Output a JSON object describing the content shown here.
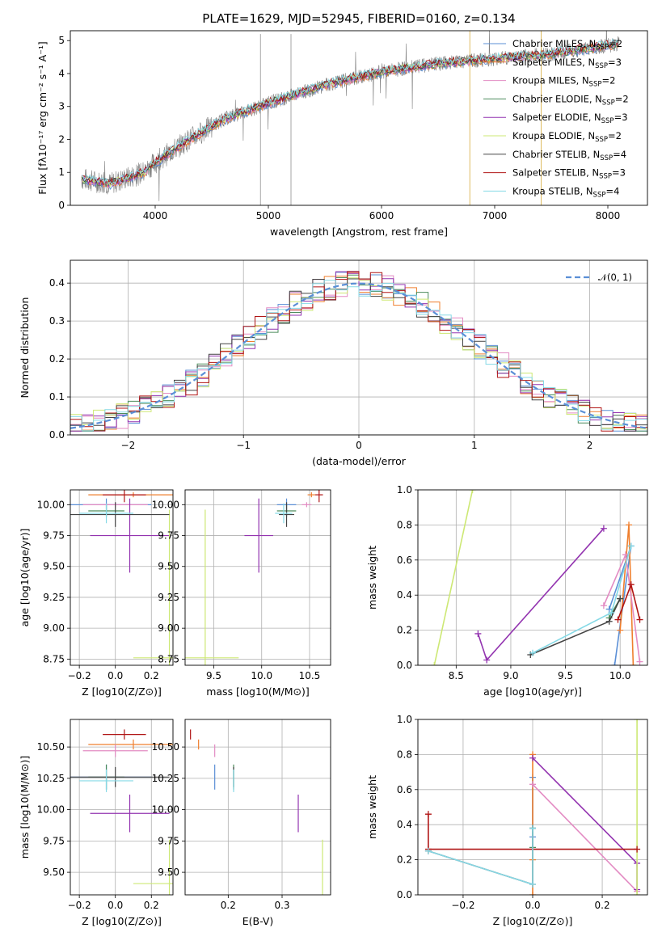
{
  "figure": {
    "title": "PLATE=1629, MJD=52945, FIBERID=0160, z=0.134"
  },
  "colors": {
    "Chabrier MILES": "#5b8fd6",
    "Salpeter MILES": "#ef7f2e",
    "Kroupa MILES": "#e38bc3",
    "Chabrier ELODIE": "#4c8c5c",
    "Salpeter ELODIE": "#9334b0",
    "Kroupa ELODIE": "#cde874",
    "Chabrier STELIB": "#444444",
    "Salpeter STELIB": "#b01515",
    "Kroupa STELIB": "#86d9e6",
    "data": "#808080",
    "normal": "#5b8fd6"
  },
  "chart_data": [
    {
      "id": "spectrum",
      "type": "line",
      "title": "PLATE=1629, MJD=52945, FIBERID=0160, z=0.134",
      "xlabel": "wavelength [Angstrom, rest frame]",
      "ylabel": "Flux [fλ10⁻¹⁷ erg cm⁻² s⁻¹ A⁻¹]",
      "xlim": [
        3250,
        8350
      ],
      "ylim": [
        0,
        5.3
      ],
      "xticks": [
        "4000",
        "5000",
        "6000",
        "7000",
        "8000"
      ],
      "yticks": [
        "0",
        "1",
        "2",
        "3",
        "4",
        "5"
      ],
      "legend_position": "right",
      "series": [
        {
          "name": "Chabrier MILES, N_SSP=2"
        },
        {
          "name": "Salpeter MILES, N_SSP=3"
        },
        {
          "name": "Kroupa MILES, N_SSP=2"
        },
        {
          "name": "Chabrier ELODIE, N_SSP=2"
        },
        {
          "name": "Salpeter ELODIE, N_SSP=3"
        },
        {
          "name": "Kroupa ELODIE, N_SSP=2"
        },
        {
          "name": "Chabrier STELIB, N_SSP=4"
        },
        {
          "name": "Salpeter STELIB, N_SSP=3"
        },
        {
          "name": "Kroupa STELIB, N_SSP=4"
        }
      ],
      "continuum": {
        "x": [
          3350,
          3600,
          3900,
          4000,
          4300,
          4600,
          5000,
          5500,
          6000,
          6500,
          7000,
          7500,
          8000,
          8100
        ],
        "y": [
          0.8,
          0.65,
          1.0,
          1.3,
          2.0,
          2.6,
          3.1,
          3.65,
          4.05,
          4.3,
          4.45,
          4.6,
          4.85,
          4.9
        ]
      }
    },
    {
      "id": "residuals",
      "type": "line",
      "xlabel": "(data-model)/error",
      "ylabel": "Normed distribution",
      "xlim": [
        -2.5,
        2.5
      ],
      "ylim": [
        0,
        0.46
      ],
      "xticks": [
        "−2",
        "−1",
        "0",
        "1",
        "2"
      ],
      "yticks": [
        "0.0",
        "0.1",
        "0.2",
        "0.3",
        "0.4"
      ],
      "grid": true,
      "legend_position": "top-right",
      "legend": "𝒩(0, 1)",
      "series_name": "𝒩(0, 1)"
    },
    {
      "id": "age-vs-Z",
      "type": "scatter",
      "xlabel": "Z [log10(Z/Z⊙)]",
      "ylabel": "age  [log10(age/yr)]",
      "xlim": [
        -0.25,
        0.32
      ],
      "ylim": [
        8.7,
        10.12
      ],
      "xticks": [
        "−0.2",
        "0.0",
        "0.2"
      ],
      "yticks": [
        "8.75",
        "9.00",
        "9.25",
        "9.50",
        "9.75",
        "10.00"
      ],
      "grid": true
    },
    {
      "id": "age-vs-mass",
      "type": "scatter",
      "xlabel": "mass [log10(M/M⊙)]",
      "xlim": [
        9.2,
        10.72
      ],
      "ylim": [
        8.7,
        10.12
      ],
      "xticks": [
        "9.5",
        "10.0",
        "10.5"
      ],
      "yticks": [
        "8.75",
        "9.00",
        "9.25",
        "9.50",
        "9.75",
        "10.00"
      ],
      "grid": true
    },
    {
      "id": "weight-vs-age",
      "type": "line",
      "xlabel": "age  [log10(age/yr)]",
      "ylabel": "mass weight",
      "xlim": [
        8.15,
        10.25
      ],
      "ylim": [
        0,
        1.0
      ],
      "xticks": [
        "8.5",
        "9.0",
        "9.5",
        "10.0"
      ],
      "yticks": [
        "0.0",
        "0.2",
        "0.4",
        "0.6",
        "0.8",
        "1.0"
      ],
      "grid": true
    },
    {
      "id": "mass-vs-Z",
      "type": "scatter",
      "xlabel": "Z [log10(Z/Z⊙)]",
      "ylabel": "mass [log10(M/M⊙)]",
      "xlim": [
        -0.25,
        0.32
      ],
      "ylim": [
        9.32,
        10.72
      ],
      "xticks": [
        "−0.2",
        "0.0",
        "0.2"
      ],
      "yticks": [
        "9.50",
        "9.75",
        "10.00",
        "10.25",
        "10.50"
      ],
      "grid": true
    },
    {
      "id": "mass-vs-ebv",
      "type": "scatter",
      "xlabel": "E(B-V)",
      "xlim": [
        0.12,
        0.39
      ],
      "ylim": [
        9.32,
        10.72
      ],
      "xticks": [
        "0.2",
        "0.3"
      ],
      "yticks": [
        "9.50",
        "9.75",
        "10.00",
        "10.25",
        "10.50"
      ],
      "grid": true
    },
    {
      "id": "weight-vs-Z",
      "type": "line",
      "xlabel": "Z [log10(Z/Z⊙)]",
      "ylabel": "mass weight",
      "xlim": [
        -0.33,
        0.33
      ],
      "ylim": [
        0,
        1.0
      ],
      "xticks": [
        "−0.2",
        "0.0",
        "0.2"
      ],
      "yticks": [
        "0.0",
        "0.2",
        "0.4",
        "0.6",
        "0.8",
        "1.0"
      ],
      "grid": true
    }
  ],
  "models": [
    {
      "name": "Chabrier MILES",
      "age": [
        10.0,
        0.05
      ],
      "Z": [
        -0.05,
        0.25
      ],
      "mass": [
        10.26,
        0.1
      ],
      "ebv": 0.175,
      "w_age": [
        9.9,
        10.1,
        9.95
      ],
      "w_w": [
        0.32,
        0.68,
        0.0
      ],
      "w_Z": [
        0.0,
        0.0
      ],
      "w_wz": [
        0.33,
        0.67
      ]
    },
    {
      "name": "Salpeter MILES",
      "age": [
        10.08,
        0.02
      ],
      "Z": [
        0.1,
        0.25
      ],
      "mass": [
        10.52,
        0.04
      ],
      "ebv": 0.145,
      "w_age": [
        10.0,
        10.08,
        10.12
      ],
      "w_w": [
        0.2,
        0.8,
        0.0
      ],
      "w_Z": [
        0.0,
        0.0,
        0.0
      ],
      "w_wz": [
        0.2,
        0.8,
        0.0
      ]
    },
    {
      "name": "Kroupa MILES",
      "age": [
        10.0,
        0.02
      ],
      "Z": [
        0.0,
        0.18
      ],
      "mass": [
        10.47,
        0.05
      ],
      "ebv": 0.175,
      "w_age": [
        9.85,
        10.05,
        10.18
      ],
      "w_w": [
        0.34,
        0.63,
        0.02
      ],
      "w_Z": [
        0.0,
        0.3
      ],
      "w_wz": [
        0.63,
        0.02
      ]
    },
    {
      "name": "Chabrier ELODIE",
      "age": [
        9.95,
        0.05
      ],
      "Z": [
        -0.05,
        0.1
      ],
      "mass": [
        10.26,
        0.1
      ],
      "ebv": 0.21,
      "w_age": [
        9.9,
        10.0
      ],
      "w_w": [
        0.27,
        0.38
      ],
      "w_Z": [
        0.0,
        0.0
      ],
      "w_wz": [
        0.27,
        0.38
      ]
    },
    {
      "name": "Salpeter ELODIE",
      "age": [
        9.75,
        0.3
      ],
      "Z": [
        0.08,
        0.22
      ],
      "mass": [
        9.97,
        0.15
      ],
      "ebv": 0.33,
      "w_age": [
        8.7,
        8.78,
        9.85
      ],
      "w_w": [
        0.18,
        0.03,
        0.78
      ],
      "w_Z": [
        0.0,
        0.3,
        0.3
      ],
      "w_wz": [
        0.78,
        0.18,
        0.03
      ]
    },
    {
      "name": "Kroupa ELODIE",
      "age": [
        8.76,
        1.2
      ],
      "Z": [
        0.3,
        0.2
      ],
      "mass": [
        9.41,
        0.35
      ],
      "ebv": 0.375,
      "w_age": [
        8.3,
        8.65
      ],
      "w_w": [
        0.0,
        1.0
      ],
      "w_Z": [
        0.3,
        0.3
      ],
      "w_wz": [
        0.0,
        1.0
      ]
    },
    {
      "name": "Chabrier STELIB",
      "age": [
        9.92,
        0.1
      ],
      "Z": [
        0.0,
        0.3
      ],
      "mass": [
        10.26,
        0.08
      ],
      "ebv": 0.21,
      "w_age": [
        9.18,
        9.9,
        10.0
      ],
      "w_w": [
        0.06,
        0.25,
        0.38
      ],
      "w_Z": [
        -0.3,
        0.0,
        0.0
      ],
      "w_wz": [
        0.25,
        0.06,
        0.38
      ]
    },
    {
      "name": "Salpeter STELIB",
      "age": [
        10.08,
        0.06
      ],
      "Z": [
        0.05,
        0.12
      ],
      "mass": [
        10.6,
        0.04
      ],
      "ebv": 0.13,
      "w_age": [
        9.98,
        10.1,
        10.18
      ],
      "w_w": [
        0.26,
        0.46,
        0.26
      ],
      "w_Z": [
        -0.3,
        -0.3,
        0.3
      ],
      "w_wz": [
        0.46,
        0.26,
        0.26
      ]
    },
    {
      "name": "Kroupa STELIB",
      "age": [
        9.93,
        0.08
      ],
      "Z": [
        -0.05,
        0.15
      ],
      "mass": [
        10.23,
        0.09
      ],
      "ebv": 0.21,
      "w_age": [
        9.2,
        9.92,
        10.1
      ],
      "w_w": [
        0.07,
        0.3,
        0.68
      ],
      "w_Z": [
        -0.3,
        0.0,
        0.0
      ],
      "w_wz": [
        0.25,
        0.06,
        0.38
      ]
    }
  ]
}
